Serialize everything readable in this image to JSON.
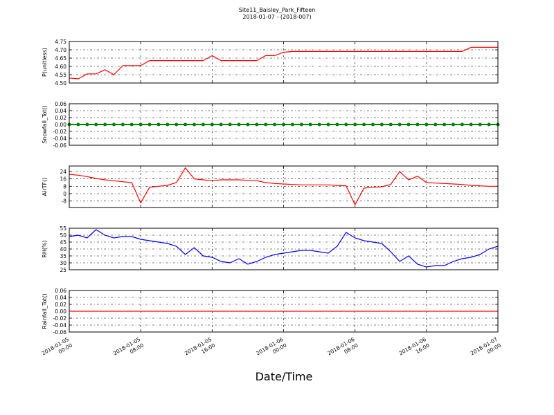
{
  "title": "Site11_Baisley_Park_Fifteen",
  "subtitle": "2018-01-07 - (2018-007)",
  "x_label": "Date/Time",
  "xlim": [
    "2018-01-05 00:00",
    "2018-01-07 00:00"
  ],
  "xticks": [
    "2018-01-05 00:00",
    "2018-01-05 08:00",
    "2018-01-05 16:00",
    "2018-01-06 00:00",
    "2018-01-06 08:00",
    "2018-01-06 16:00",
    "2018-01-07 00:00"
  ],
  "x": [
    "2018-01-05 00:00",
    "2018-01-05 01:00",
    "2018-01-05 02:00",
    "2018-01-05 03:00",
    "2018-01-05 04:00",
    "2018-01-05 05:00",
    "2018-01-05 06:00",
    "2018-01-05 07:00",
    "2018-01-05 08:00",
    "2018-01-05 09:00",
    "2018-01-05 10:00",
    "2018-01-05 11:00",
    "2018-01-05 12:00",
    "2018-01-05 13:00",
    "2018-01-05 14:00",
    "2018-01-05 15:00",
    "2018-01-05 16:00",
    "2018-01-05 17:00",
    "2018-01-05 18:00",
    "2018-01-05 19:00",
    "2018-01-05 20:00",
    "2018-01-05 21:00",
    "2018-01-05 22:00",
    "2018-01-05 23:00",
    "2018-01-06 00:00",
    "2018-01-06 01:00",
    "2018-01-06 02:00",
    "2018-01-06 03:00",
    "2018-01-06 04:00",
    "2018-01-06 05:00",
    "2018-01-06 06:00",
    "2018-01-06 07:00",
    "2018-01-06 08:00",
    "2018-01-06 09:00",
    "2018-01-06 10:00",
    "2018-01-06 11:00",
    "2018-01-06 12:00",
    "2018-01-06 13:00",
    "2018-01-06 14:00",
    "2018-01-06 15:00",
    "2018-01-06 16:00",
    "2018-01-06 17:00",
    "2018-01-06 18:00",
    "2018-01-06 19:00",
    "2018-01-06 20:00",
    "2018-01-06 21:00",
    "2018-01-06 22:00",
    "2018-01-06 23:00",
    "2018-01-07 00:00"
  ],
  "chart_data": [
    {
      "type": "line",
      "y_label": "P(unitless)",
      "color": "#ff0000",
      "grid": true,
      "ylim": [
        4.5,
        4.75
      ],
      "yticks": [
        {
          "value": 4.5,
          "label": "4.50"
        },
        4.55,
        {
          "value": 4.6,
          "label": "4.60"
        },
        4.65,
        {
          "value": 4.7,
          "label": "4.70"
        },
        4.75
      ],
      "values": [
        4.53,
        4.525,
        4.555,
        4.555,
        4.58,
        4.55,
        4.605,
        4.605,
        4.605,
        4.635,
        4.635,
        4.635,
        4.635,
        4.635,
        4.635,
        4.635,
        4.665,
        4.635,
        4.635,
        4.635,
        4.635,
        4.635,
        4.665,
        4.665,
        4.685,
        4.69,
        4.69,
        4.69,
        4.69,
        4.69,
        4.69,
        4.69,
        4.69,
        4.69,
        4.69,
        4.69,
        4.69,
        4.69,
        4.69,
        4.69,
        4.69,
        4.69,
        4.69,
        4.69,
        4.69,
        4.715,
        4.715,
        4.715,
        4.715
      ]
    },
    {
      "type": "line",
      "y_label": "Snowfall_Tot()",
      "color": "#008000",
      "marker": "o",
      "grid": true,
      "ylim": [
        -0.06,
        0.06
      ],
      "yticks": [
        -0.06,
        -0.04,
        -0.02,
        {
          "value": 0,
          "label": "0.00"
        },
        0.02,
        0.04,
        0.06
      ],
      "values": [
        0,
        0,
        0,
        0,
        0,
        0,
        0,
        0,
        0,
        0,
        0,
        0,
        0,
        0,
        0,
        0,
        0,
        0,
        0,
        0,
        0,
        0,
        0,
        0,
        0,
        0,
        0,
        0,
        0,
        0,
        0,
        0,
        0,
        0,
        0,
        0,
        0,
        0,
        0,
        0,
        0,
        0,
        0,
        0,
        0,
        0,
        0,
        0,
        0
      ]
    },
    {
      "type": "line",
      "y_label": "AirTF()",
      "color": "#ff0000",
      "grid": true,
      "ylim": [
        -15,
        30
      ],
      "yticks": [
        -8,
        0,
        8,
        16,
        24
      ],
      "values": [
        21,
        20,
        18.5,
        16.5,
        15,
        14,
        13,
        12,
        -10,
        7,
        8,
        9,
        12,
        28,
        16,
        15,
        14,
        15,
        15,
        15,
        14.5,
        14,
        12,
        11,
        10.5,
        10,
        9.5,
        9.5,
        9.5,
        9.5,
        9,
        8.5,
        -12,
        6,
        7,
        7.5,
        10,
        24,
        15,
        19,
        12,
        11.5,
        11,
        10.5,
        10,
        9,
        8.5,
        8,
        8
      ]
    },
    {
      "type": "line",
      "y_label": "RH(%)",
      "color": "#0000ff",
      "grid": true,
      "ylim": [
        25,
        55
      ],
      "yticks": [
        25,
        30,
        35,
        40,
        45,
        50,
        55
      ],
      "values": [
        49,
        50,
        48,
        54,
        50,
        48,
        49,
        49,
        47,
        46,
        45,
        44,
        42,
        36,
        41,
        35,
        34,
        31,
        30,
        33,
        29,
        31,
        34,
        36,
        37,
        38,
        39,
        39,
        38,
        37,
        42,
        52,
        48,
        46,
        45,
        44,
        38,
        31,
        35,
        29,
        27,
        28,
        28,
        31,
        33,
        34,
        36,
        40,
        42
      ]
    },
    {
      "type": "line",
      "y_label": "Rainfall_Tot()",
      "color": "#ff0000",
      "grid": true,
      "ylim": [
        -0.06,
        0.06
      ],
      "yticks": [
        -0.06,
        -0.04,
        -0.02,
        {
          "value": 0,
          "label": "0.00"
        },
        0.02,
        0.04,
        0.06
      ],
      "values": [
        0,
        0,
        0,
        0,
        0,
        0,
        0,
        0,
        0,
        0,
        0,
        0,
        0,
        0,
        0,
        0,
        0,
        0,
        0,
        0,
        0,
        0,
        0,
        0,
        0,
        0,
        0,
        0,
        0,
        0,
        0,
        0,
        0,
        0,
        0,
        0,
        0,
        0,
        0,
        0,
        0,
        0,
        0,
        0,
        0,
        0,
        0,
        0,
        0
      ]
    }
  ]
}
